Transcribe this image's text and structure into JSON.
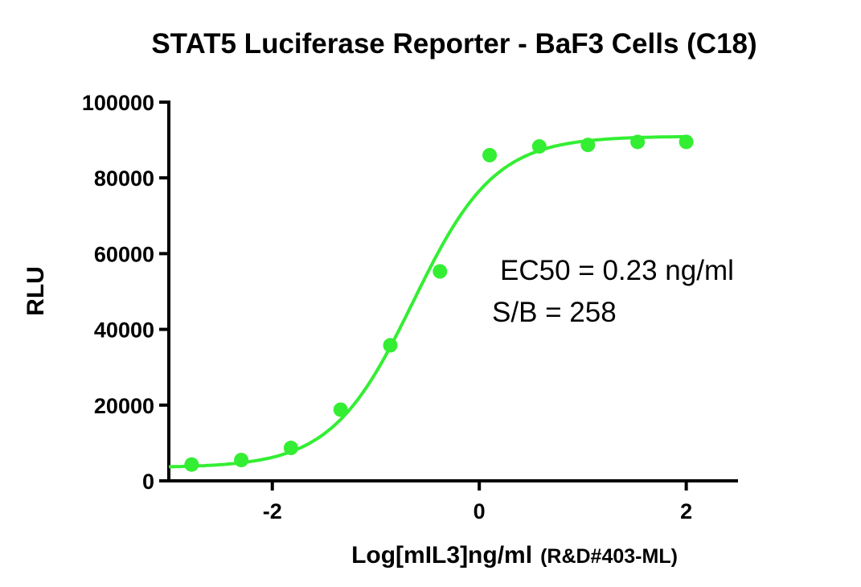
{
  "chart_data": {
    "type": "scatter",
    "title": "STAT5 Luciferase Reporter - BaF3 Cells (C18)",
    "xlabel_main": "Log[mIL3]ng/ml",
    "xlabel_note": "(R&D#403-ML)",
    "ylabel": "RLU",
    "xlim": [
      -3,
      2.5
    ],
    "ylim": [
      0,
      100000
    ],
    "x_ticks": [
      -2,
      0,
      2
    ],
    "x_tick_labels": [
      "-2",
      "0",
      "2"
    ],
    "y_ticks": [
      0,
      20000,
      40000,
      60000,
      80000,
      100000
    ],
    "y_tick_labels": [
      "0",
      "20000",
      "40000",
      "60000",
      "80000",
      "100000"
    ],
    "grid": false,
    "series": [
      {
        "color": "#33ee33",
        "x": [
          -2.78,
          -2.3,
          -1.82,
          -1.34,
          -0.86,
          -0.38,
          0.1,
          0.58,
          1.05,
          1.53,
          2.0
        ],
        "y": [
          4300,
          5500,
          8700,
          18800,
          35800,
          55300,
          86000,
          88300,
          88700,
          89500,
          89500
        ]
      }
    ],
    "fit_curve": {
      "model": "four-parameter logistic",
      "bottom": 3500,
      "top": 91000,
      "logEC50": -0.64,
      "hill_slope": 1.1,
      "color": "#33ee33"
    },
    "annotations": [
      "EC50 = 0.23 ng/ml",
      "S/B = 258"
    ]
  }
}
